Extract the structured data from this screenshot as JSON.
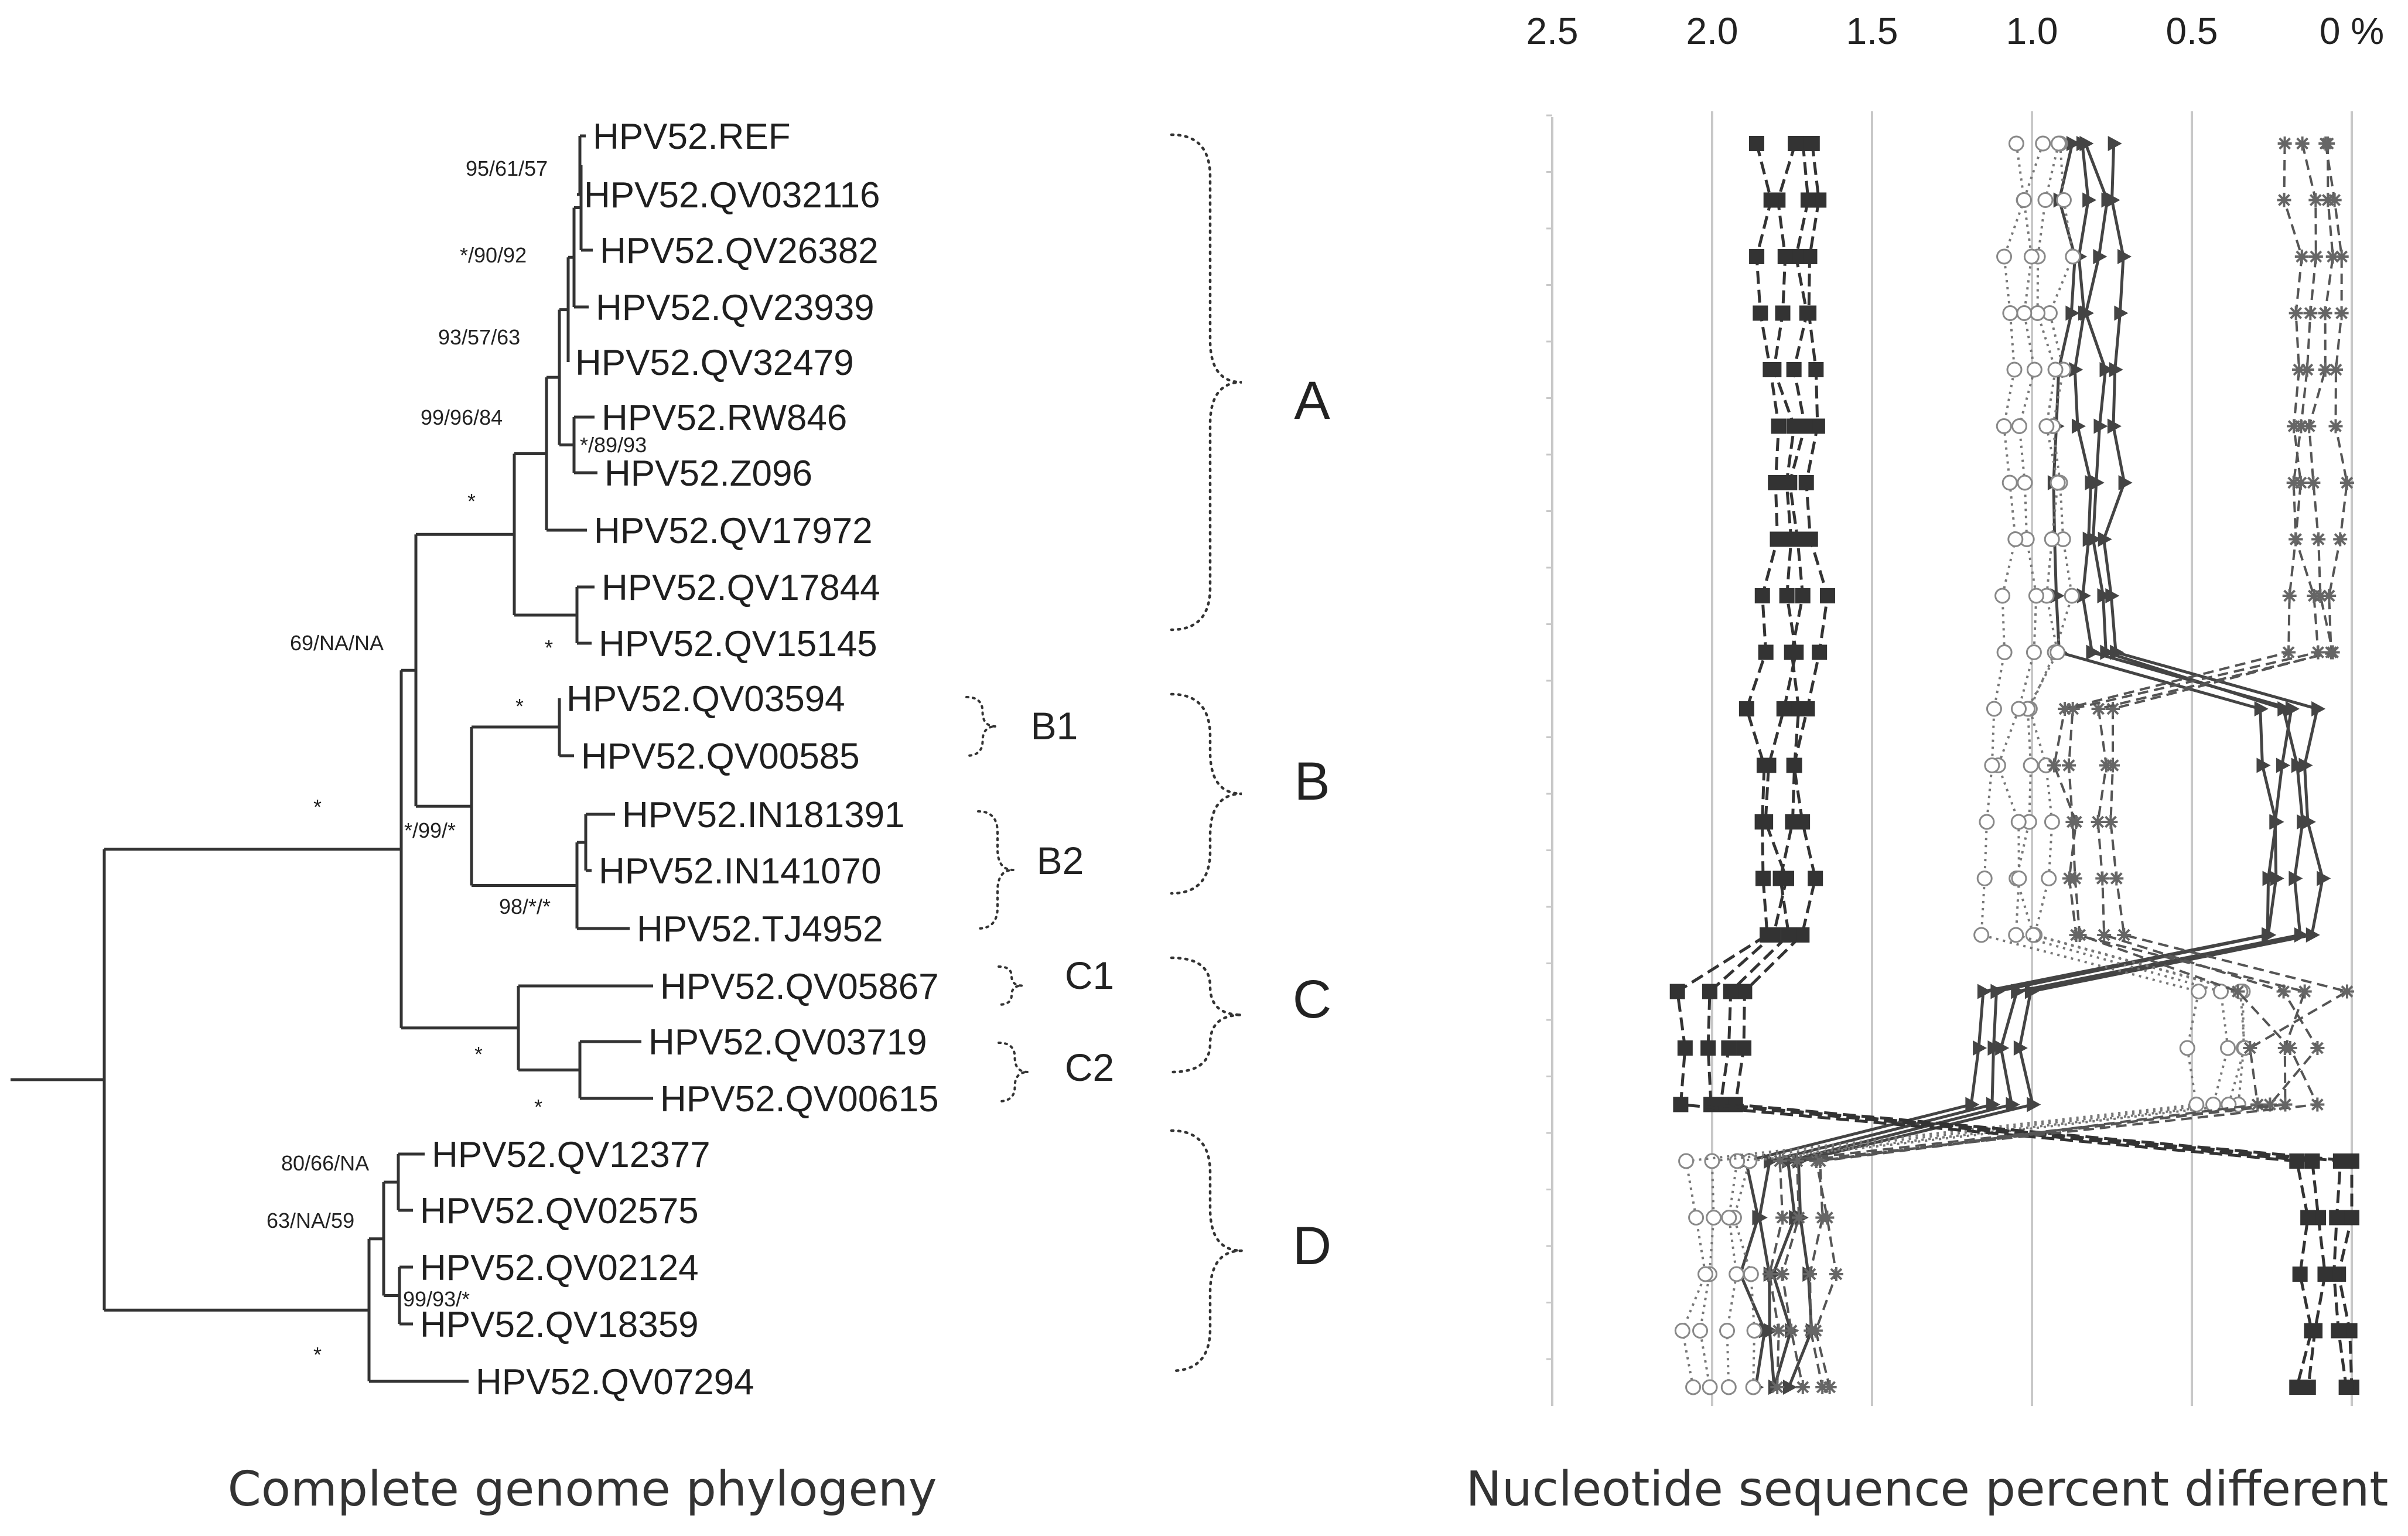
{
  "tree": {
    "caption": "Complete genome phylogeny",
    "taxa": [
      "HPV52.REF",
      "HPV52.QV032116",
      "HPV52.QV26382",
      "HPV52.QV23939",
      "HPV52.QV32479",
      "HPV52.RW846",
      "HPV52.Z096",
      "HPV52.QV17972",
      "HPV52.QV17844",
      "HPV52.QV15145",
      "HPV52.QV03594",
      "HPV52.QV00585",
      "HPV52.IN181391",
      "HPV52.IN141070",
      "HPV52.TJ4952",
      "HPV52.QV05867",
      "HPV52.QV03719",
      "HPV52.QV00615",
      "HPV52.QV12377",
      "HPV52.QV02575",
      "HPV52.QV02124",
      "HPV52.QV18359",
      "HPV52.QV07294"
    ],
    "supports": [
      "95/61/57",
      "*/90/92",
      "93/57/63",
      "99/96/84",
      "*/89/93",
      "*",
      "*",
      "69/NA/NA",
      "*",
      "*/99/*",
      "98/*/*",
      "*",
      "*",
      "*",
      "80/66/NA",
      "63/NA/59",
      "99/93/*",
      "*"
    ],
    "clades": [
      "A",
      "B",
      "C",
      "D"
    ],
    "subclades": [
      "B1",
      "B2",
      "C1",
      "C2"
    ]
  },
  "chart_data": {
    "type": "line",
    "xlabel": "Nucleotide sequence percent different",
    "x_ticks": [
      "2.5",
      "2.0",
      "1.5",
      "1.0",
      "0.5",
      "0 %"
    ],
    "xlim": [
      2.5,
      0
    ],
    "x_reversed": true,
    "grid": true,
    "rows": 23,
    "series_style_families": [
      "solid-triangle",
      "dotted-circle",
      "dashed-square",
      "dashed-star"
    ],
    "group_profiles": [
      {
        "group": "A",
        "rows": [
          0,
          9
        ],
        "typical_values": {
          "dashed-square": 1.75,
          "dotted-circle": 0.98,
          "solid-triangle": 0.82,
          "dashed-star": 0.12
        }
      },
      {
        "group": "B",
        "rows": [
          10,
          14
        ],
        "typical_values": {
          "dashed-square": 1.78,
          "dotted-circle": 1.05,
          "dashed-star": 0.82,
          "solid-triangle": 0.2
        }
      },
      {
        "group": "C",
        "rows": [
          15,
          17
        ],
        "typical_values": {
          "dashed-square": 2.0,
          "solid-triangle": 1.1,
          "dotted-circle": 0.4
        }
      },
      {
        "group": "D",
        "rows": [
          18,
          22
        ],
        "typical_values": {
          "dotted-circle": 1.98,
          "solid-triangle": 1.8,
          "dashed-star": 1.72,
          "dashed-square": 0.08
        }
      }
    ]
  }
}
